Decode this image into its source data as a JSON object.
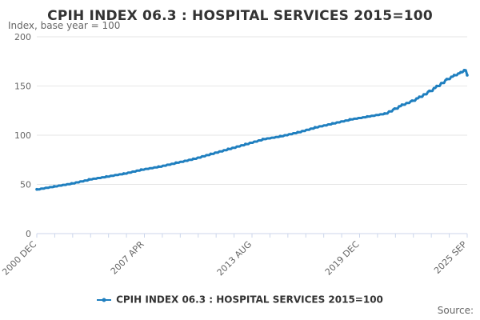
{
  "chart_data": {
    "type": "line",
    "title": "CPIH INDEX 06.3 : HOSPITAL SERVICES 2015=100",
    "ylabel": "Index, base year = 100",
    "xlabel": "",
    "ylim": [
      0,
      200
    ],
    "yticks": [
      0,
      50,
      100,
      150,
      200
    ],
    "xticks": [
      "2000 DEC",
      "2007 APR",
      "2013 AUG",
      "2019 DEC",
      "2025 SEP"
    ],
    "x_range": [
      "2000 DEC",
      "2025 SEP"
    ],
    "grid": "horizontal",
    "legend_position": "bottom",
    "series": [
      {
        "name": "CPIH INDEX 06.3 : HOSPITAL SERVICES 2015=100",
        "color": "#1f7fbf",
        "x": [
          2000.92,
          2001.92,
          2002.92,
          2003.92,
          2004.92,
          2005.92,
          2006.92,
          2007.92,
          2008.92,
          2009.92,
          2010.92,
          2011.92,
          2012.92,
          2013.92,
          2014.92,
          2015.92,
          2016.92,
          2017.92,
          2018.92,
          2019.92,
          2020.92,
          2021.5,
          2021.92,
          2022.5,
          2022.92,
          2023.5,
          2023.92,
          2024.5,
          2024.92,
          2025.3,
          2025.5,
          2025.67
        ],
        "values": [
          45,
          48,
          51,
          55,
          58,
          61,
          65,
          68,
          72,
          76,
          81,
          86,
          91,
          96,
          99,
          103,
          108,
          112,
          116,
          119,
          122,
          127,
          131,
          135,
          139,
          145,
          150,
          157,
          161,
          164,
          166,
          161
        ]
      }
    ]
  },
  "source_label": "Source:"
}
